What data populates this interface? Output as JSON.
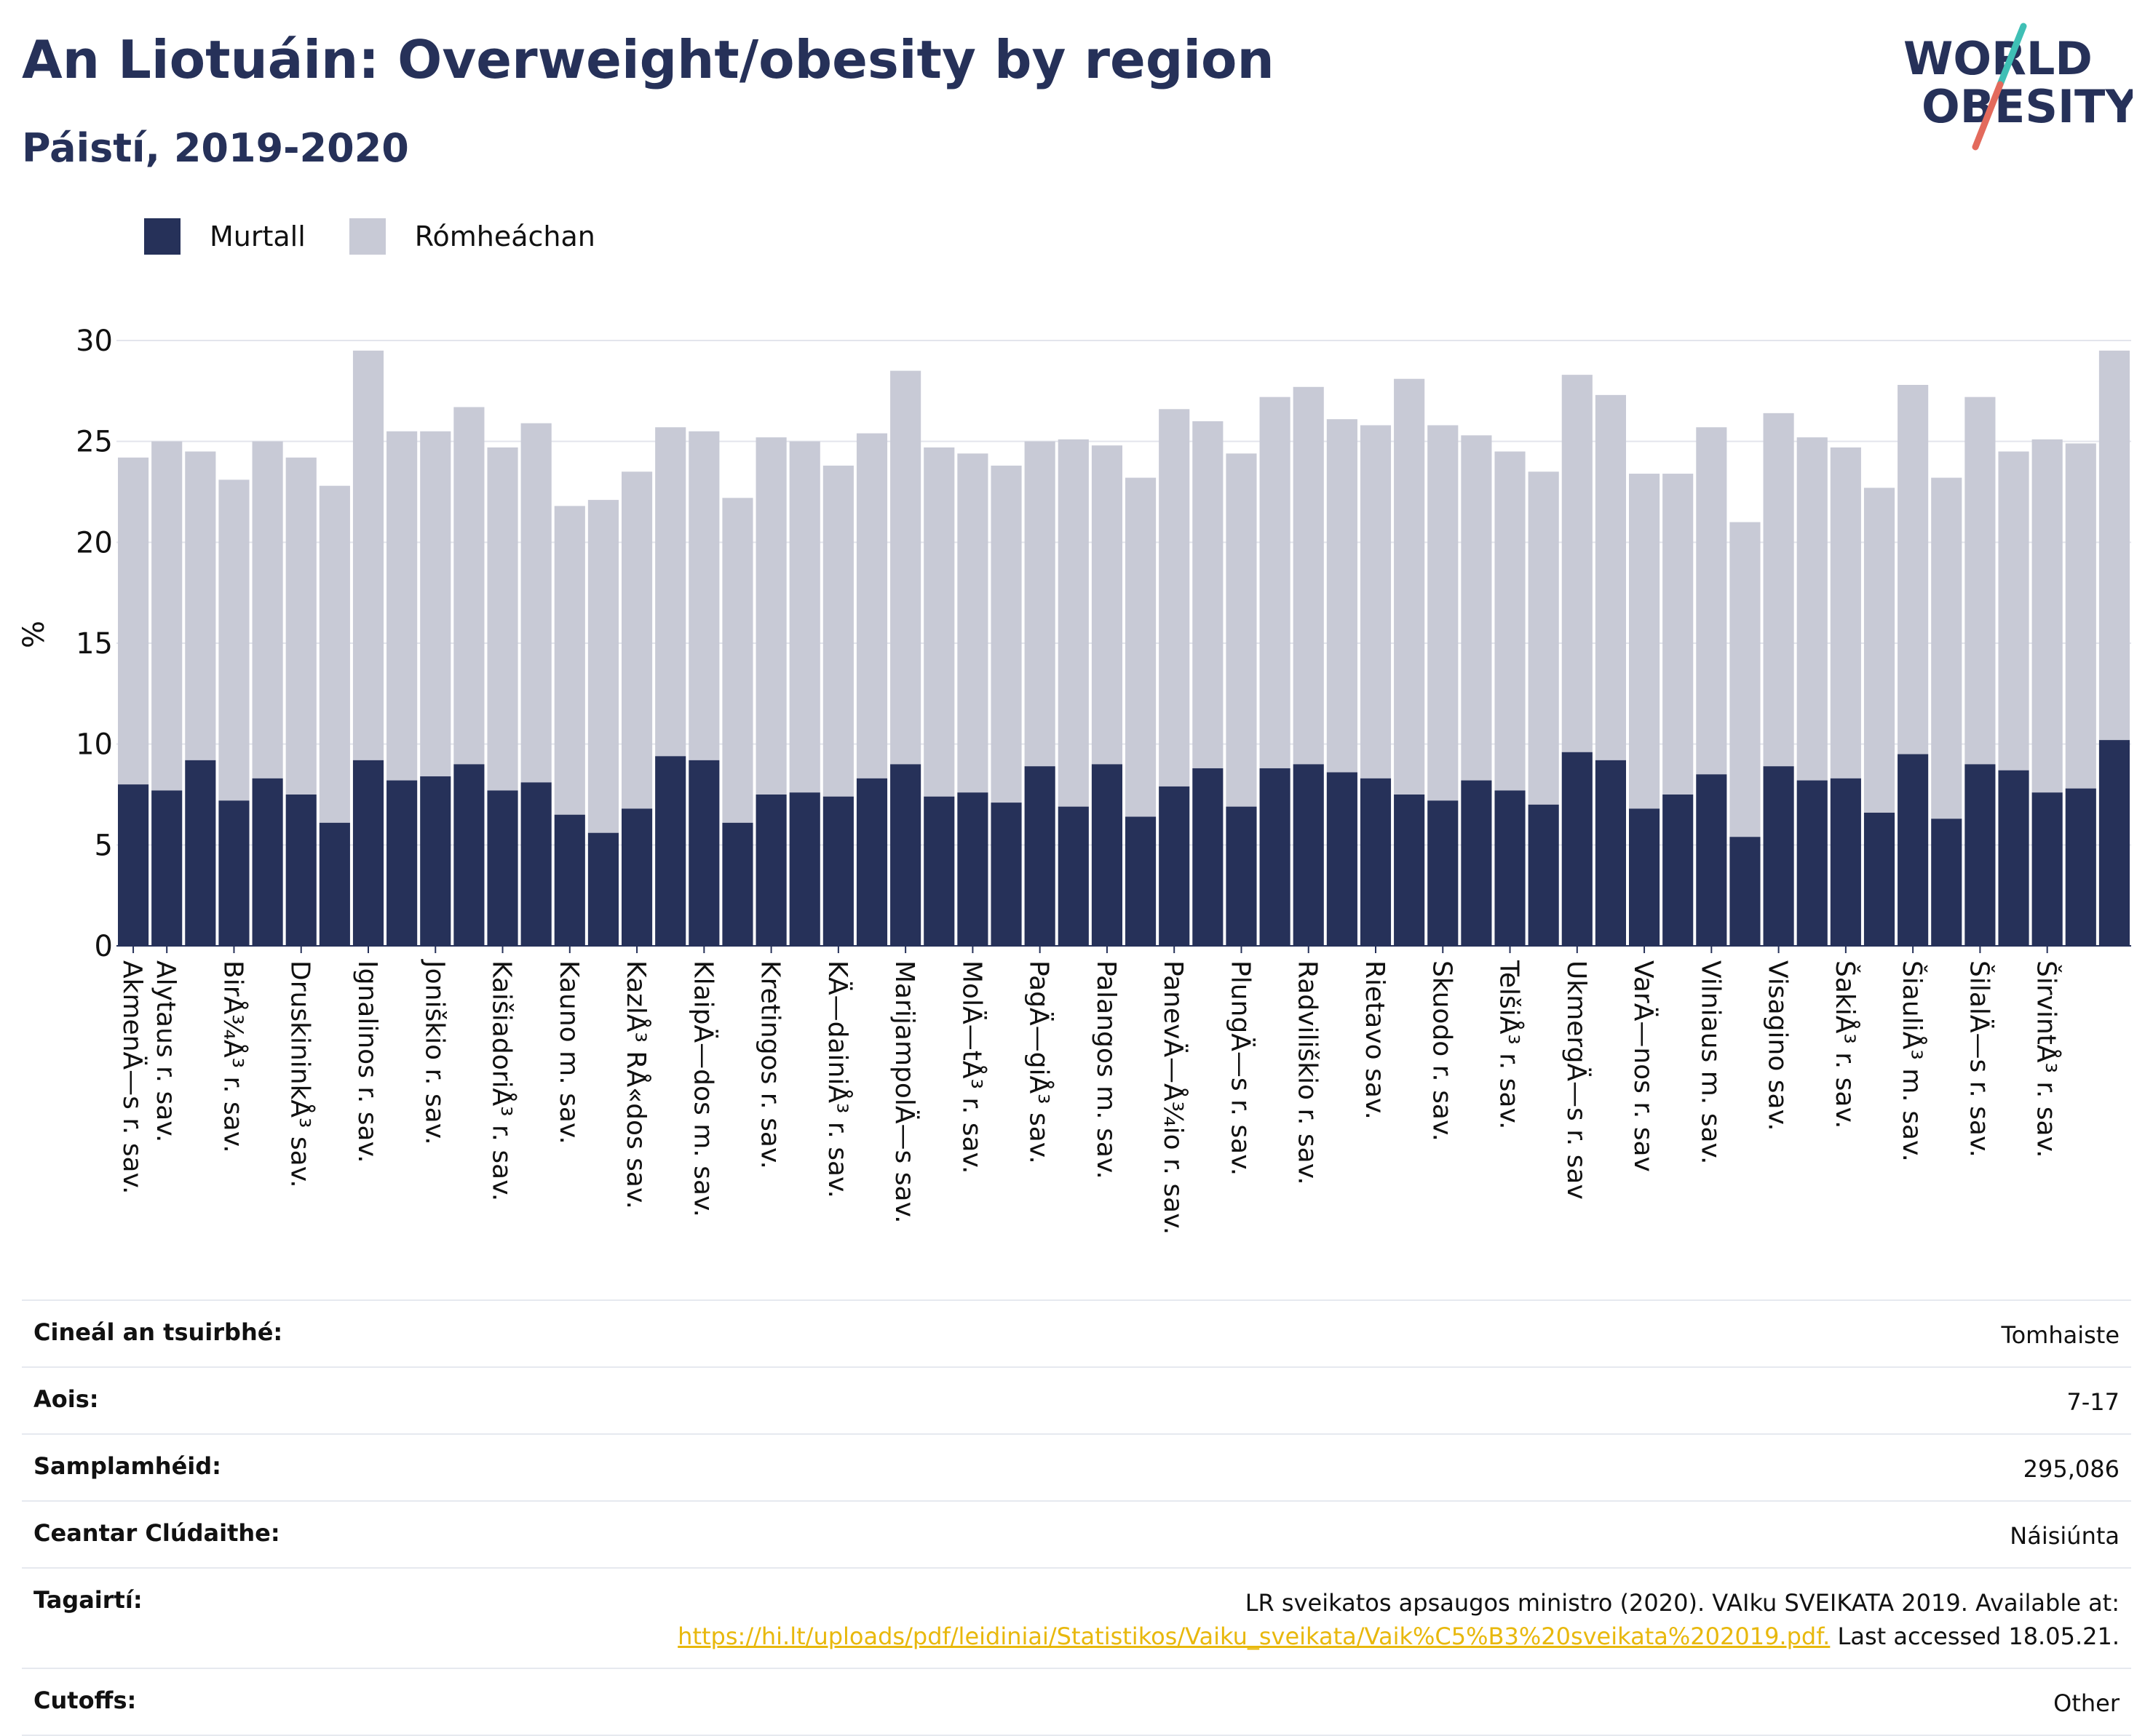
{
  "header": {
    "title": "An Liotuáin: Overweight/obesity by region",
    "subtitle": "Páistí, 2019-2020"
  },
  "logo": {
    "line1": "WORLD",
    "line2": "OBESITY"
  },
  "legend": [
    {
      "label": "Murtall",
      "color": "#263159"
    },
    {
      "label": "Rómheáchan",
      "color": "#c8cad6"
    }
  ],
  "chart_data": {
    "type": "bar",
    "stacked": true,
    "ylabel": "%",
    "ylim": [
      0,
      30
    ],
    "yticks": [
      0,
      5,
      10,
      15,
      20,
      25,
      30
    ],
    "grid": true,
    "legend_position": "top-left",
    "categories": [
      "AkmenÄ—s r. sav.",
      "Alytaus r. sav.",
      "",
      "BirÅ¾Å³ r. sav.",
      "",
      "DruskininkÅ³ sav.",
      "",
      "Ignalinos r. sav.",
      "",
      "Joniškio r. sav.",
      "",
      "KaišiadoriÅ³ r. sav.",
      "",
      "Kauno m. sav.",
      "",
      "KazlÅ³ RÅ«dos sav.",
      "",
      "KlaipÄ—dos m. sav.",
      "",
      "Kretingos r. sav.",
      "",
      "KÄ—dainiÅ³ r. sav.",
      "",
      "MarijampolÄ—s sav.",
      "",
      "MolÄ—tÅ³ r. sav.",
      "",
      "PagÄ—giÅ³ sav.",
      "",
      "Palangos m. sav.",
      "",
      "PanevÄ—Å¾io r. sav.",
      "",
      "PlungÄ—s r. sav.",
      "",
      "Radviliškio r. sav.",
      "",
      "Rietavo sav.",
      "",
      "Skuodo r. sav.",
      "",
      "TelšiÅ³ r. sav.",
      "",
      "UkmergÄ—s r. sav",
      "",
      "VarÄ—nos r. sav",
      "",
      "Vilniaus m. sav.",
      "",
      "Visagino sav.",
      "",
      "ŠakiÅ³ r. sav.",
      "",
      "ŠiauliÅ³ m. sav.",
      "",
      "ŠilalÄ—s r. sav.",
      "",
      "ŠirvintÅ³ r. sav.",
      "",
      ""
    ],
    "series": [
      {
        "name": "Murtall",
        "color": "#263159",
        "values": [
          8.0,
          7.7,
          9.2,
          7.2,
          8.3,
          7.5,
          6.1,
          9.2,
          8.2,
          8.4,
          9.0,
          7.7,
          8.1,
          6.5,
          5.6,
          6.8,
          9.4,
          9.2,
          6.1,
          7.5,
          7.6,
          7.4,
          8.3,
          9.0,
          7.4,
          7.6,
          7.1,
          8.9,
          6.9,
          9.0,
          6.4,
          7.9,
          8.8,
          6.9,
          8.8,
          9.0,
          8.6,
          8.3,
          7.5,
          7.2,
          8.2,
          7.7,
          7.0,
          9.6,
          9.2,
          6.8,
          7.5,
          8.5,
          5.4,
          8.9,
          8.2,
          8.3,
          6.6,
          9.5,
          6.3,
          9.0,
          8.7,
          7.6,
          7.8,
          10.2
        ]
      },
      {
        "name": "Rómheáchan",
        "color": "#c8cad6",
        "values": [
          16.2,
          17.3,
          15.3,
          15.9,
          16.7,
          16.7,
          16.7,
          20.3,
          17.3,
          17.1,
          17.7,
          17.0,
          17.8,
          15.3,
          16.5,
          16.7,
          16.3,
          16.3,
          16.1,
          17.7,
          17.4,
          16.4,
          17.1,
          19.5,
          17.3,
          16.8,
          16.7,
          16.1,
          18.2,
          15.8,
          16.8,
          18.7,
          17.2,
          17.5,
          18.4,
          18.7,
          17.5,
          17.5,
          20.6,
          18.6,
          17.1,
          16.8,
          16.5,
          18.7,
          18.1,
          16.6,
          15.9,
          17.2,
          15.6,
          17.5,
          17.0,
          16.4,
          16.1,
          18.3,
          16.9,
          18.2,
          15.8,
          17.5,
          17.1,
          19.3
        ]
      }
    ]
  },
  "info": [
    {
      "label": "Cineál an tsuirbhé:",
      "value": "Tomhaiste"
    },
    {
      "label": "Aois:",
      "value": "7-17"
    },
    {
      "label": "Samplamhéid:",
      "value": "295,086"
    },
    {
      "label": "Ceantar Clúdaithe:",
      "value": "Náisiúnta"
    }
  ],
  "reference": {
    "label": "Tagairtí:",
    "text": "LR sveikatos apsaugos ministro (2020). VAIku SVEIKATA 2019. Available at:",
    "link": "https://hi.lt/uploads/pdf/leidiniai/Statistikos/Vaiku_sveikata/Vaik%C5%B3%20sveikata%202019.pdf.",
    "suffix": " Last accessed 18.05.21."
  },
  "cutoffs": {
    "label": "Cutoffs:",
    "value": "Other"
  }
}
